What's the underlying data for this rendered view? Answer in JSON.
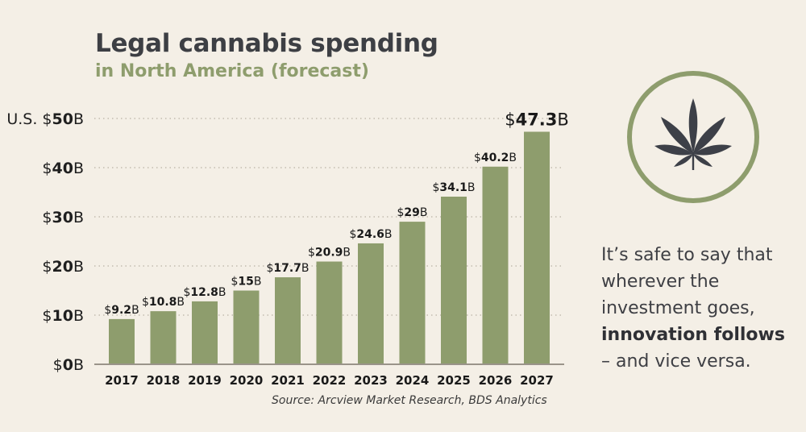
{
  "header": {
    "title": "Legal cannabis spending",
    "subtitle": "in North America (forecast)"
  },
  "chart_data": {
    "type": "bar",
    "title": "Legal cannabis spending",
    "subtitle": "in North America (forecast)",
    "xlabel": "",
    "ylabel": "U.S. $ (billions)",
    "ylim": [
      0,
      50
    ],
    "grid": true,
    "y_ticks": [
      {
        "value": 0,
        "prefix": "$",
        "num": "0",
        "suffix": "B"
      },
      {
        "value": 10,
        "prefix": "$",
        "num": "10",
        "suffix": "B"
      },
      {
        "value": 20,
        "prefix": "$",
        "num": "20",
        "suffix": "B"
      },
      {
        "value": 30,
        "prefix": "$",
        "num": "30",
        "suffix": "B"
      },
      {
        "value": 40,
        "prefix": "$",
        "num": "40",
        "suffix": "B"
      },
      {
        "value": 50,
        "prefix": "U.S. $",
        "num": "50",
        "suffix": "B"
      }
    ],
    "categories": [
      "2017",
      "2018",
      "2019",
      "2020",
      "2021",
      "2022",
      "2023",
      "2024",
      "2025",
      "2026",
      "2027"
    ],
    "values": [
      9.2,
      10.8,
      12.8,
      15,
      17.7,
      20.9,
      24.6,
      29,
      34.1,
      40.2,
      47.3
    ],
    "data_labels": [
      "9.2",
      "10.8",
      "12.8",
      "15",
      "17.7",
      "20.9",
      "24.6",
      "29",
      "34.1",
      "40.2",
      "47.3"
    ],
    "label_prefix": "$",
    "label_suffix": "B",
    "bar_color": "#8e9d6d",
    "source": "Source:  Arcview Market Research, BDS Analytics"
  },
  "sidebar": {
    "icon": "cannabis-leaf-icon",
    "circle_color": "#8e9d6d",
    "quote_lines": [
      "It’s safe to say that",
      "wherever the",
      "investment goes,"
    ],
    "quote_bold": "innovation follows",
    "quote_end": "– and vice versa."
  }
}
